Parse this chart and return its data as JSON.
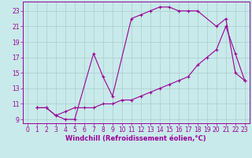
{
  "xlabel": "Windchill (Refroidissement éolien,°C)",
  "bg_color": "#c8eaea",
  "grid_color": "#aacccc",
  "line_color": "#990099",
  "xlim": [
    -0.5,
    23.5
  ],
  "ylim": [
    8.5,
    24.2
  ],
  "xticks": [
    0,
    1,
    2,
    3,
    4,
    5,
    6,
    7,
    8,
    9,
    10,
    11,
    12,
    13,
    14,
    15,
    16,
    17,
    18,
    19,
    20,
    21,
    22,
    23
  ],
  "yticks": [
    9,
    11,
    13,
    15,
    17,
    19,
    21,
    23
  ],
  "line1_x": [
    1,
    2,
    3,
    4,
    5,
    7,
    8,
    9,
    11,
    12,
    13,
    14,
    15,
    16,
    17,
    18,
    20,
    21,
    22,
    23
  ],
  "line1_y": [
    10.5,
    10.5,
    9.5,
    9.0,
    9.0,
    17.5,
    14.5,
    12.0,
    22.0,
    22.5,
    23.0,
    23.5,
    23.5,
    23.0,
    23.0,
    23.0,
    21.0,
    22.0,
    15.0,
    14.0
  ],
  "line2_x": [
    1,
    2,
    3,
    4,
    5,
    6,
    7,
    8,
    9,
    10,
    11,
    12,
    13,
    14,
    15,
    16,
    17,
    18,
    19,
    20,
    21,
    22,
    23
  ],
  "line2_y": [
    10.5,
    10.5,
    9.5,
    10.0,
    10.5,
    10.5,
    10.5,
    11.0,
    11.0,
    11.5,
    11.5,
    12.0,
    12.5,
    13.0,
    13.5,
    14.0,
    14.5,
    16.0,
    17.0,
    18.0,
    21.0,
    17.5,
    14.0
  ]
}
